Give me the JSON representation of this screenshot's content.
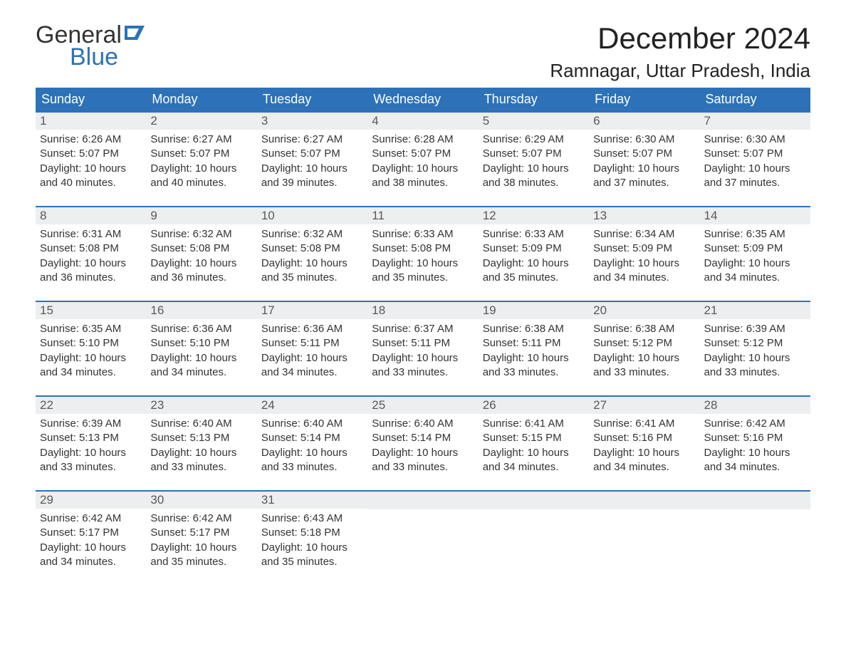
{
  "logo": {
    "line1": "General",
    "line2": "Blue"
  },
  "title": {
    "month": "December 2024",
    "location": "Ramnagar, Uttar Pradesh, India"
  },
  "colors": {
    "header_bg": "#2d72b8",
    "header_text": "#ffffff",
    "row_separator": "#2d72b8",
    "daynum_bg": "#eceeef",
    "daynum_text": "#595959",
    "body_text": "#333333",
    "logo_blue": "#2d72b8",
    "logo_gray": "#333333",
    "page_bg": "#ffffff"
  },
  "typography": {
    "month_title_fontsize": 42,
    "location_fontsize": 26,
    "weekday_fontsize": 18,
    "daynum_fontsize": 17,
    "body_fontsize": 15,
    "font_family": "Arial"
  },
  "weekdays": [
    "Sunday",
    "Monday",
    "Tuesday",
    "Wednesday",
    "Thursday",
    "Friday",
    "Saturday"
  ],
  "weeks": [
    [
      {
        "n": "1",
        "sunrise": "Sunrise: 6:26 AM",
        "sunset": "Sunset: 5:07 PM",
        "daylight": "Daylight: 10 hours and 40 minutes."
      },
      {
        "n": "2",
        "sunrise": "Sunrise: 6:27 AM",
        "sunset": "Sunset: 5:07 PM",
        "daylight": "Daylight: 10 hours and 40 minutes."
      },
      {
        "n": "3",
        "sunrise": "Sunrise: 6:27 AM",
        "sunset": "Sunset: 5:07 PM",
        "daylight": "Daylight: 10 hours and 39 minutes."
      },
      {
        "n": "4",
        "sunrise": "Sunrise: 6:28 AM",
        "sunset": "Sunset: 5:07 PM",
        "daylight": "Daylight: 10 hours and 38 minutes."
      },
      {
        "n": "5",
        "sunrise": "Sunrise: 6:29 AM",
        "sunset": "Sunset: 5:07 PM",
        "daylight": "Daylight: 10 hours and 38 minutes."
      },
      {
        "n": "6",
        "sunrise": "Sunrise: 6:30 AM",
        "sunset": "Sunset: 5:07 PM",
        "daylight": "Daylight: 10 hours and 37 minutes."
      },
      {
        "n": "7",
        "sunrise": "Sunrise: 6:30 AM",
        "sunset": "Sunset: 5:07 PM",
        "daylight": "Daylight: 10 hours and 37 minutes."
      }
    ],
    [
      {
        "n": "8",
        "sunrise": "Sunrise: 6:31 AM",
        "sunset": "Sunset: 5:08 PM",
        "daylight": "Daylight: 10 hours and 36 minutes."
      },
      {
        "n": "9",
        "sunrise": "Sunrise: 6:32 AM",
        "sunset": "Sunset: 5:08 PM",
        "daylight": "Daylight: 10 hours and 36 minutes."
      },
      {
        "n": "10",
        "sunrise": "Sunrise: 6:32 AM",
        "sunset": "Sunset: 5:08 PM",
        "daylight": "Daylight: 10 hours and 35 minutes."
      },
      {
        "n": "11",
        "sunrise": "Sunrise: 6:33 AM",
        "sunset": "Sunset: 5:08 PM",
        "daylight": "Daylight: 10 hours and 35 minutes."
      },
      {
        "n": "12",
        "sunrise": "Sunrise: 6:33 AM",
        "sunset": "Sunset: 5:09 PM",
        "daylight": "Daylight: 10 hours and 35 minutes."
      },
      {
        "n": "13",
        "sunrise": "Sunrise: 6:34 AM",
        "sunset": "Sunset: 5:09 PM",
        "daylight": "Daylight: 10 hours and 34 minutes."
      },
      {
        "n": "14",
        "sunrise": "Sunrise: 6:35 AM",
        "sunset": "Sunset: 5:09 PM",
        "daylight": "Daylight: 10 hours and 34 minutes."
      }
    ],
    [
      {
        "n": "15",
        "sunrise": "Sunrise: 6:35 AM",
        "sunset": "Sunset: 5:10 PM",
        "daylight": "Daylight: 10 hours and 34 minutes."
      },
      {
        "n": "16",
        "sunrise": "Sunrise: 6:36 AM",
        "sunset": "Sunset: 5:10 PM",
        "daylight": "Daylight: 10 hours and 34 minutes."
      },
      {
        "n": "17",
        "sunrise": "Sunrise: 6:36 AM",
        "sunset": "Sunset: 5:11 PM",
        "daylight": "Daylight: 10 hours and 34 minutes."
      },
      {
        "n": "18",
        "sunrise": "Sunrise: 6:37 AM",
        "sunset": "Sunset: 5:11 PM",
        "daylight": "Daylight: 10 hours and 33 minutes."
      },
      {
        "n": "19",
        "sunrise": "Sunrise: 6:38 AM",
        "sunset": "Sunset: 5:11 PM",
        "daylight": "Daylight: 10 hours and 33 minutes."
      },
      {
        "n": "20",
        "sunrise": "Sunrise: 6:38 AM",
        "sunset": "Sunset: 5:12 PM",
        "daylight": "Daylight: 10 hours and 33 minutes."
      },
      {
        "n": "21",
        "sunrise": "Sunrise: 6:39 AM",
        "sunset": "Sunset: 5:12 PM",
        "daylight": "Daylight: 10 hours and 33 minutes."
      }
    ],
    [
      {
        "n": "22",
        "sunrise": "Sunrise: 6:39 AM",
        "sunset": "Sunset: 5:13 PM",
        "daylight": "Daylight: 10 hours and 33 minutes."
      },
      {
        "n": "23",
        "sunrise": "Sunrise: 6:40 AM",
        "sunset": "Sunset: 5:13 PM",
        "daylight": "Daylight: 10 hours and 33 minutes."
      },
      {
        "n": "24",
        "sunrise": "Sunrise: 6:40 AM",
        "sunset": "Sunset: 5:14 PM",
        "daylight": "Daylight: 10 hours and 33 minutes."
      },
      {
        "n": "25",
        "sunrise": "Sunrise: 6:40 AM",
        "sunset": "Sunset: 5:14 PM",
        "daylight": "Daylight: 10 hours and 33 minutes."
      },
      {
        "n": "26",
        "sunrise": "Sunrise: 6:41 AM",
        "sunset": "Sunset: 5:15 PM",
        "daylight": "Daylight: 10 hours and 34 minutes."
      },
      {
        "n": "27",
        "sunrise": "Sunrise: 6:41 AM",
        "sunset": "Sunset: 5:16 PM",
        "daylight": "Daylight: 10 hours and 34 minutes."
      },
      {
        "n": "28",
        "sunrise": "Sunrise: 6:42 AM",
        "sunset": "Sunset: 5:16 PM",
        "daylight": "Daylight: 10 hours and 34 minutes."
      }
    ],
    [
      {
        "n": "29",
        "sunrise": "Sunrise: 6:42 AM",
        "sunset": "Sunset: 5:17 PM",
        "daylight": "Daylight: 10 hours and 34 minutes."
      },
      {
        "n": "30",
        "sunrise": "Sunrise: 6:42 AM",
        "sunset": "Sunset: 5:17 PM",
        "daylight": "Daylight: 10 hours and 35 minutes."
      },
      {
        "n": "31",
        "sunrise": "Sunrise: 6:43 AM",
        "sunset": "Sunset: 5:18 PM",
        "daylight": "Daylight: 10 hours and 35 minutes."
      },
      null,
      null,
      null,
      null
    ]
  ]
}
